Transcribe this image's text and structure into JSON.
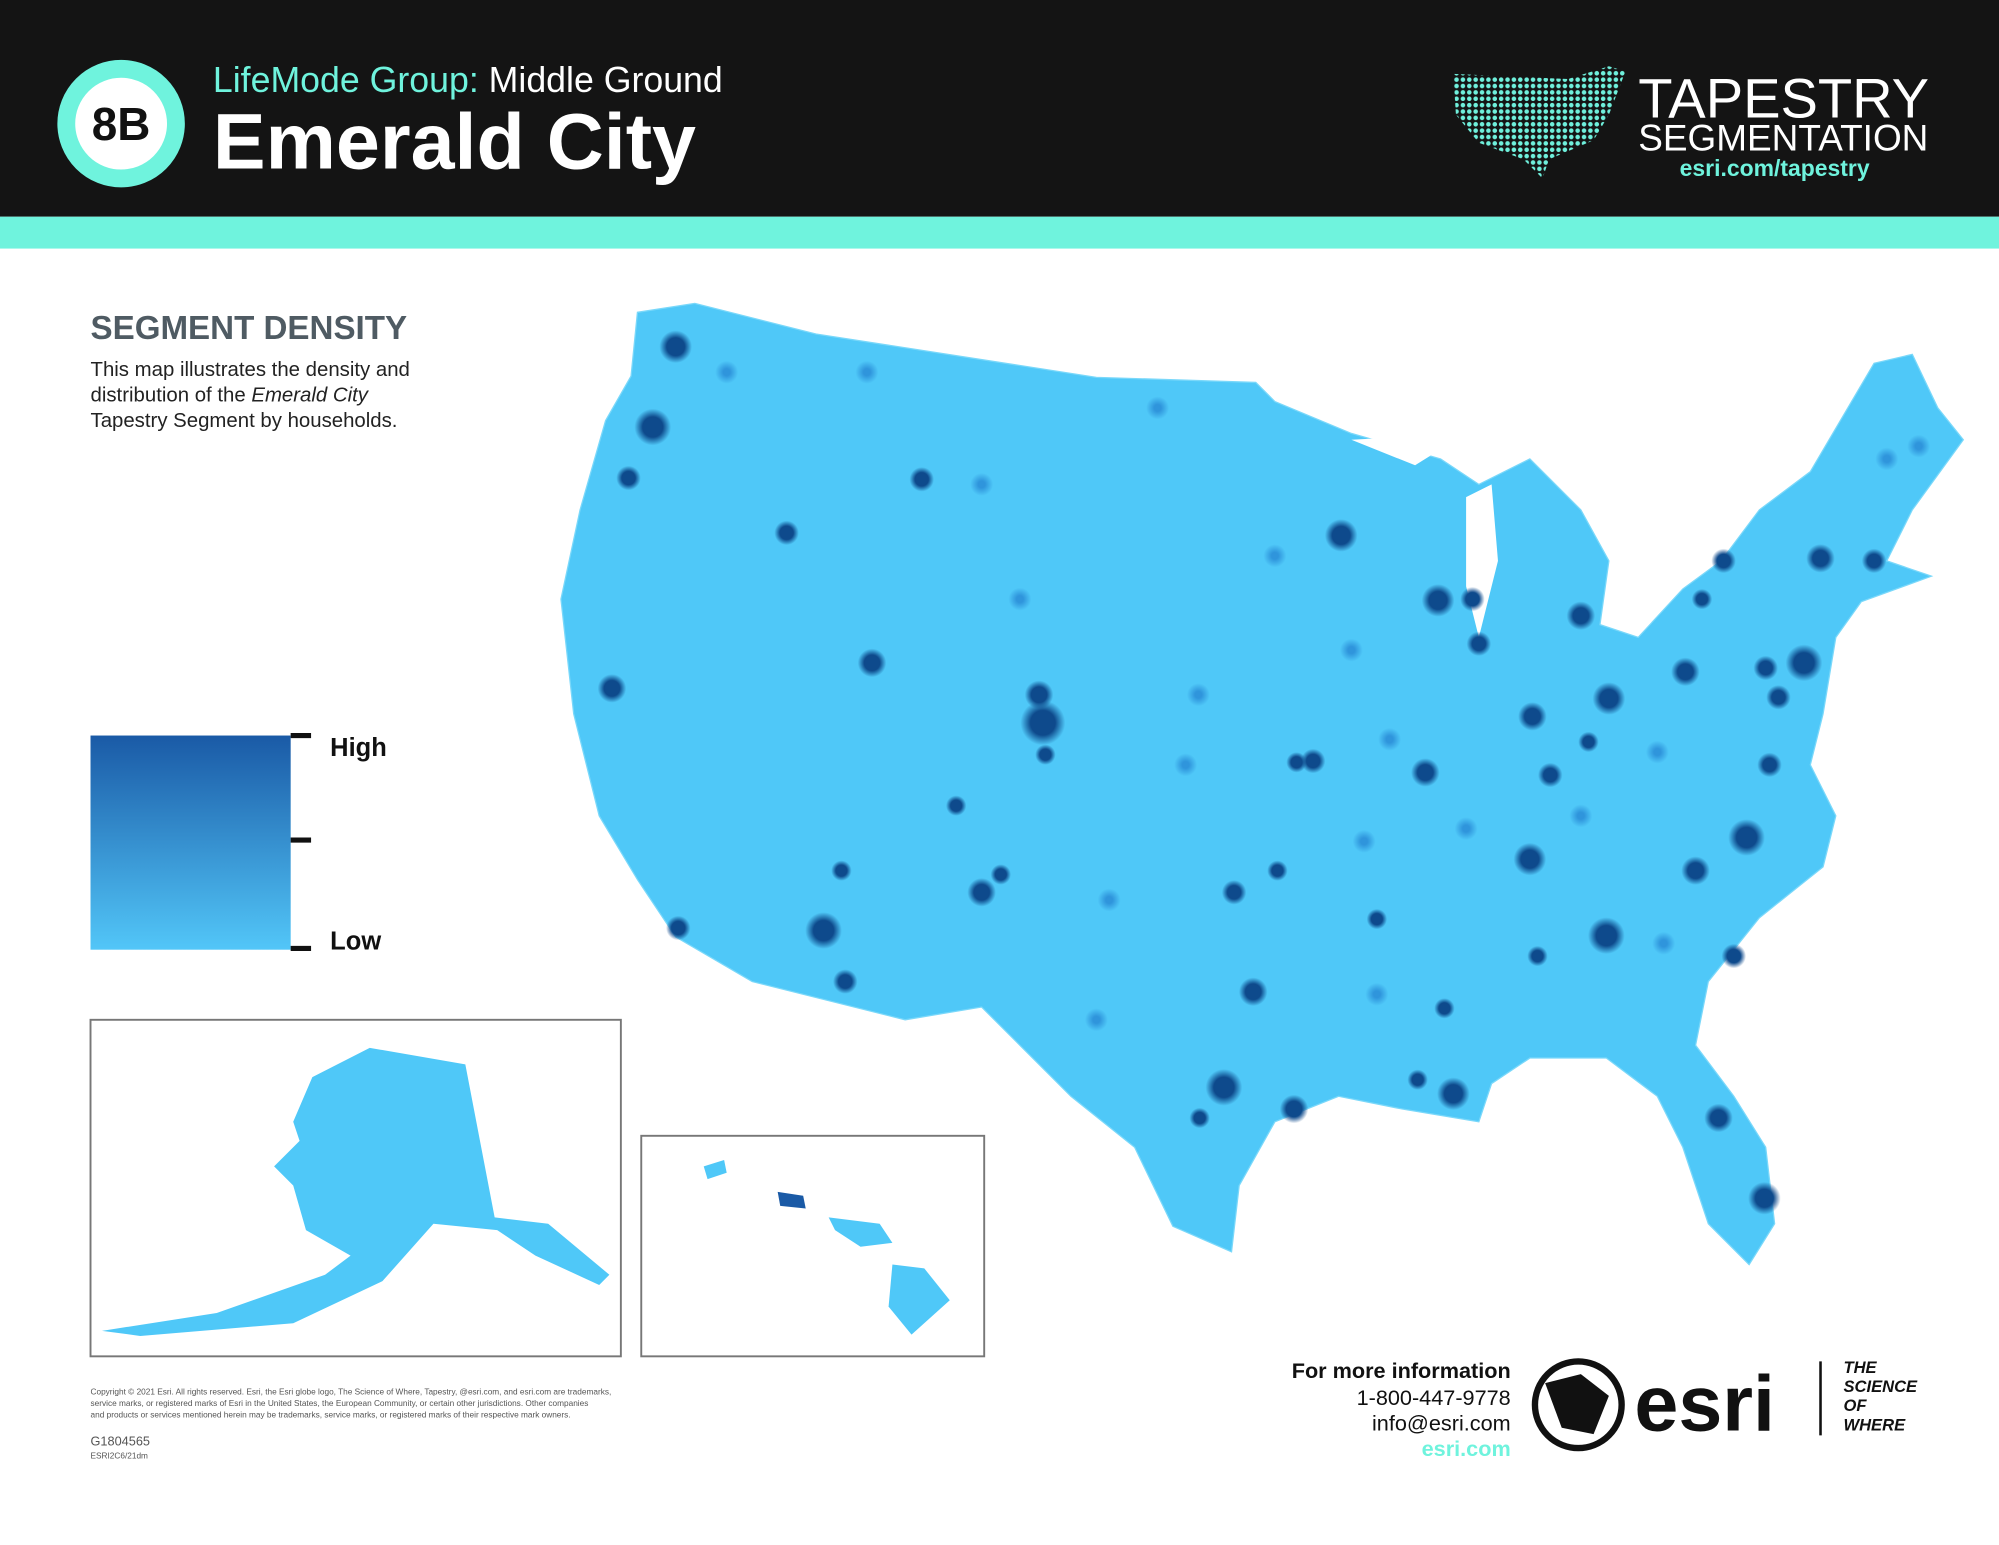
{
  "header": {
    "badge": "8B",
    "lifemode_label": "LifeMode Group:",
    "lifemode_name": "Middle Ground",
    "title": "Emerald City",
    "brand": {
      "line1": "TAPESTRY",
      "line2": "SEGMENTATION",
      "url": "esri.com/tapestry"
    }
  },
  "section": {
    "title": "SEGMENT DENSITY",
    "description": {
      "line1": "This map illustrates the density and",
      "line2_start": "distribution of the ",
      "line2_italic": "Emerald City",
      "line3": "Tapestry Segment by households."
    }
  },
  "legend": {
    "high": "High",
    "low": "Low"
  },
  "footer": {
    "contact_heading": "For more information",
    "phone": "1-800-447-9778",
    "email": "info@esri.com",
    "web": "esri.com",
    "copyright": [
      "Copyright © 2021 Esri. All rights reserved. Esri, the Esri globe logo, The Science of Where, Tapestry, @esri.com, and esri.com are trademarks,",
      "service marks, or registered marks of Esri in the United States, the European Community, or certain other jurisdictions. Other companies",
      "and products or services mentioned herein may be trademarks, service marks, or registered marks of their respective mark owners."
    ],
    "code": "G1804565",
    "subcode": "ESRI2C6/21dm",
    "logo": "esri",
    "tagline": [
      "THE",
      "SCIENCE",
      "OF",
      "WHERE"
    ]
  }
}
